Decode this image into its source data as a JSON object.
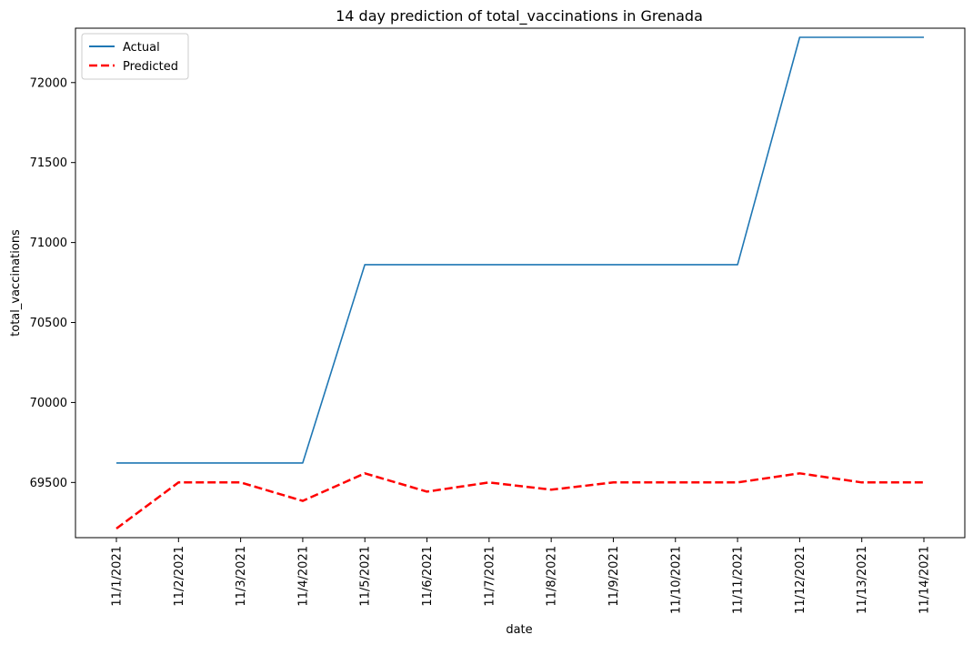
{
  "chart_data": {
    "type": "line",
    "title": "14 day prediction of total_vaccinations in Grenada",
    "xlabel": "date",
    "ylabel": "total_vaccinations",
    "categories": [
      "11/1/2021",
      "11/2/2021",
      "11/3/2021",
      "11/4/2021",
      "11/5/2021",
      "11/6/2021",
      "11/7/2021",
      "11/8/2021",
      "11/9/2021",
      "11/10/2021",
      "11/11/2021",
      "11/12/2021",
      "11/13/2021",
      "11/14/2021"
    ],
    "series": [
      {
        "name": "Actual",
        "color": "#1f77b4",
        "style": "solid",
        "values": [
          69622,
          69622,
          69622,
          69622,
          70862,
          70862,
          70862,
          70862,
          70862,
          70862,
          70862,
          72283,
          72283,
          72283
        ]
      },
      {
        "name": "Predicted",
        "color": "#ff0000",
        "style": "dashed",
        "values": [
          69212,
          69500,
          69500,
          69385,
          69557,
          69443,
          69500,
          69455,
          69500,
          69500,
          69500,
          69557,
          69500,
          69500
        ]
      }
    ],
    "yticks": [
      69500,
      70000,
      70500,
      71000,
      71500,
      72000
    ],
    "ylim": [
      69155,
      72340
    ],
    "grid": false,
    "legend_position": "top-left"
  }
}
